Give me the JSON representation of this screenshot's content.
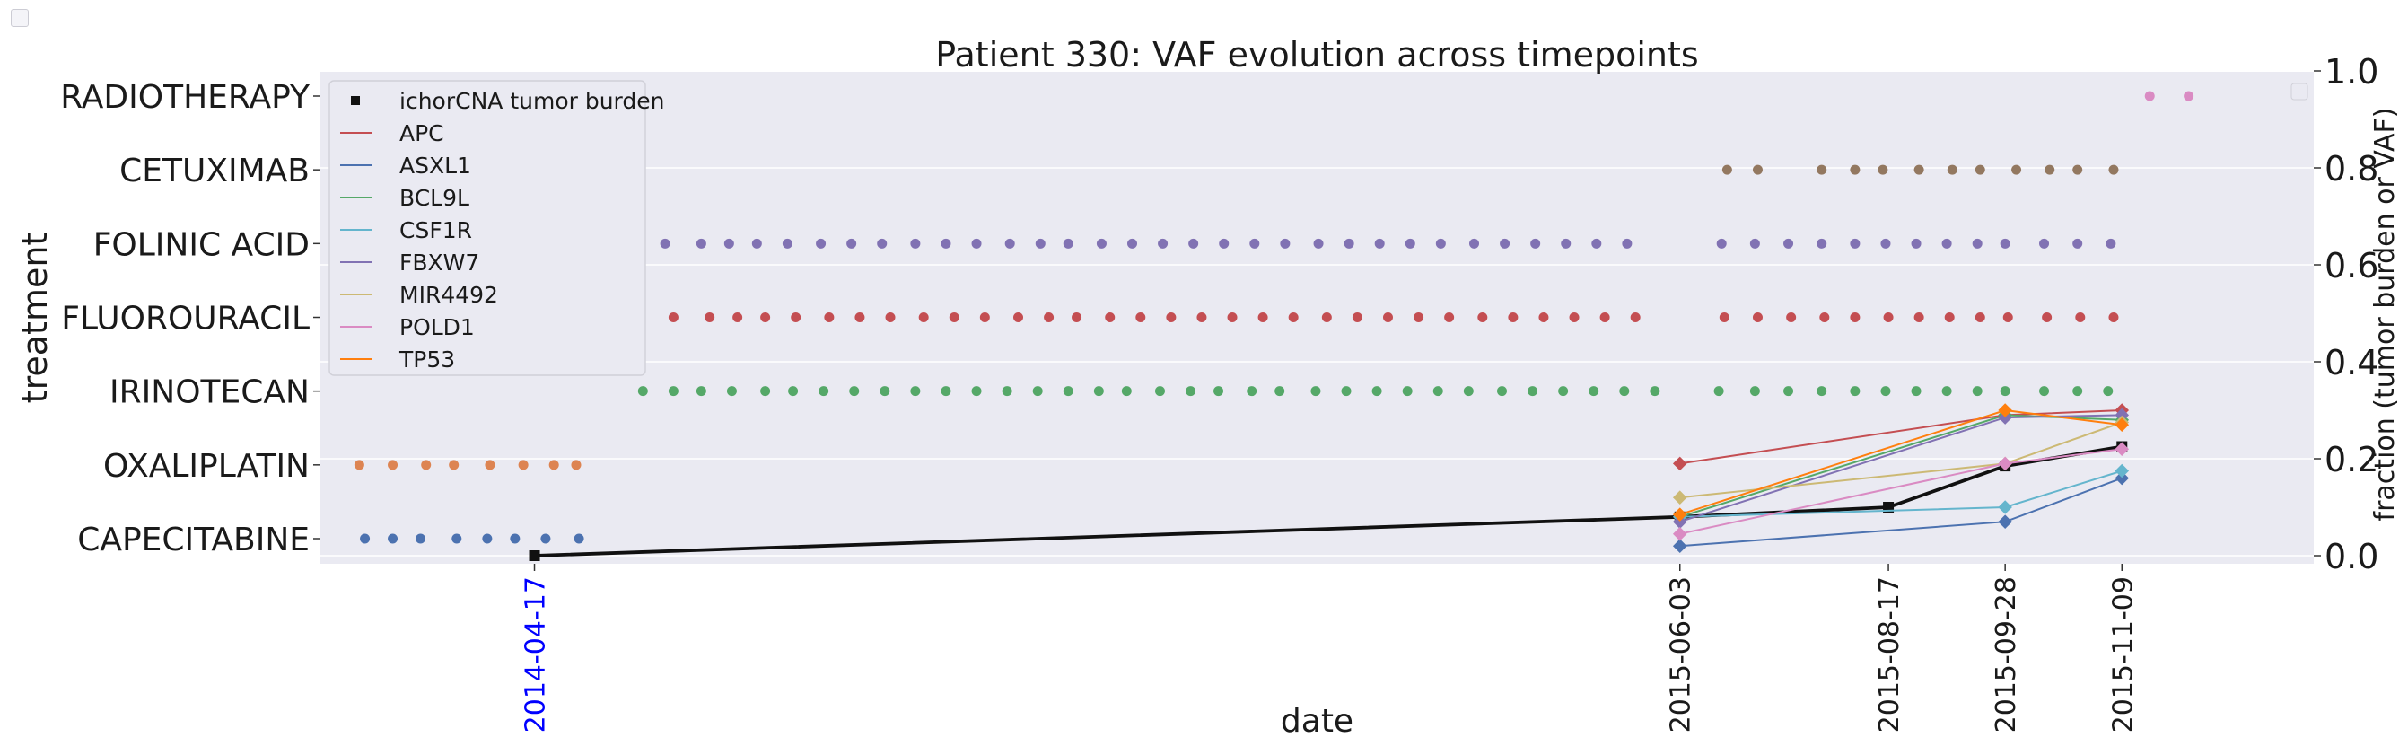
{
  "chart_data": {
    "type": "scatter",
    "title": "Patient 330: VAF evolution across timepoints",
    "xlabel": "date",
    "ylabel_left": "treatment",
    "ylabel_right": "fraction (tumor burden or VAF)",
    "right_ylim": [
      0,
      1
    ],
    "right_yticks": [
      "0.0",
      "0.2",
      "0.4",
      "0.6",
      "0.8",
      "1.0"
    ],
    "xlim": [
      "2014-01-30",
      "2016-01-17"
    ],
    "x_ticks": [
      {
        "label": "2014-04-17",
        "date": "2014-04-17",
        "color": "#0000ff"
      },
      {
        "label": "2015-06-03",
        "date": "2015-06-03",
        "color": "#1a1a1a"
      },
      {
        "label": "2015-08-17",
        "date": "2015-08-17",
        "color": "#1a1a1a"
      },
      {
        "label": "2015-09-28",
        "date": "2015-09-28",
        "color": "#1a1a1a"
      },
      {
        "label": "2015-11-09",
        "date": "2015-11-09",
        "color": "#1a1a1a"
      }
    ],
    "grid": true,
    "legend_position": "top-left",
    "treatments": [
      {
        "name": "CAPECITABINE",
        "color": "#4c72b0",
        "dates": [
          "2014-02-15",
          "2014-02-25",
          "2014-03-07",
          "2014-03-20",
          "2014-03-31",
          "2014-04-10",
          "2014-04-21",
          "2014-05-03"
        ]
      },
      {
        "name": "OXALIPLATIN",
        "color": "#dd8452",
        "dates": [
          "2014-02-13",
          "2014-02-25",
          "2014-03-09",
          "2014-03-19",
          "2014-04-01",
          "2014-04-13",
          "2014-04-24",
          "2014-05-02"
        ]
      },
      {
        "name": "IRINOTECAN",
        "color": "#55a868",
        "dates": [
          "2014-05-26",
          "2014-06-06",
          "2014-06-16",
          "2014-06-27",
          "2014-07-09",
          "2014-07-19",
          "2014-07-30",
          "2014-08-10",
          "2014-08-21",
          "2014-09-01",
          "2014-09-12",
          "2014-09-23",
          "2014-10-04",
          "2014-10-15",
          "2014-10-26",
          "2014-11-06",
          "2014-11-16",
          "2014-11-28",
          "2014-12-09",
          "2014-12-19",
          "2014-12-31",
          "2015-01-10",
          "2015-01-23",
          "2015-02-03",
          "2015-02-14",
          "2015-02-25",
          "2015-03-08",
          "2015-03-19",
          "2015-03-31",
          "2015-04-11",
          "2015-04-22",
          "2015-05-03",
          "2015-05-14",
          "2015-05-25",
          "2015-06-17",
          "2015-06-30",
          "2015-07-12",
          "2015-07-24",
          "2015-08-05",
          "2015-08-16",
          "2015-08-27",
          "2015-09-07",
          "2015-09-18",
          "2015-09-28",
          "2015-10-12",
          "2015-10-24",
          "2015-11-04"
        ]
      },
      {
        "name": "FLUOROURACIL",
        "color": "#c44e52",
        "dates": [
          "2014-06-06",
          "2014-06-19",
          "2014-06-29",
          "2014-07-09",
          "2014-07-20",
          "2014-08-01",
          "2014-08-12",
          "2014-08-23",
          "2014-09-04",
          "2014-09-15",
          "2014-09-26",
          "2014-10-08",
          "2014-10-19",
          "2014-10-29",
          "2014-11-10",
          "2014-11-21",
          "2014-12-02",
          "2014-12-13",
          "2014-12-24",
          "2015-01-04",
          "2015-01-15",
          "2015-01-27",
          "2015-02-07",
          "2015-02-18",
          "2015-03-01",
          "2015-03-12",
          "2015-03-24",
          "2015-04-04",
          "2015-04-15",
          "2015-04-26",
          "2015-05-07",
          "2015-05-18",
          "2015-06-19",
          "2015-07-01",
          "2015-07-13",
          "2015-07-25",
          "2015-08-05",
          "2015-08-17",
          "2015-08-28",
          "2015-09-08",
          "2015-09-19",
          "2015-09-29",
          "2015-10-13",
          "2015-10-25",
          "2015-11-06"
        ]
      },
      {
        "name": "FOLINIC ACID",
        "color": "#8172b3",
        "dates": [
          "2014-06-03",
          "2014-06-16",
          "2014-06-26",
          "2014-07-06",
          "2014-07-17",
          "2014-07-29",
          "2014-08-09",
          "2014-08-20",
          "2014-09-01",
          "2014-09-12",
          "2014-09-23",
          "2014-10-05",
          "2014-10-16",
          "2014-10-26",
          "2014-11-07",
          "2014-11-18",
          "2014-11-29",
          "2014-12-10",
          "2014-12-21",
          "2015-01-01",
          "2015-01-12",
          "2015-01-24",
          "2015-02-04",
          "2015-02-15",
          "2015-02-26",
          "2015-03-09",
          "2015-03-21",
          "2015-04-01",
          "2015-04-12",
          "2015-04-23",
          "2015-05-04",
          "2015-05-15",
          "2015-06-18",
          "2015-06-30",
          "2015-07-12",
          "2015-07-24",
          "2015-08-05",
          "2015-08-16",
          "2015-08-27",
          "2015-09-07",
          "2015-09-18",
          "2015-09-28",
          "2015-10-12",
          "2015-10-24",
          "2015-11-05"
        ]
      },
      {
        "name": "CETUXIMAB",
        "color": "#937860",
        "dates": [
          "2015-06-20",
          "2015-07-01",
          "2015-07-24",
          "2015-08-05",
          "2015-08-15",
          "2015-08-28",
          "2015-09-09",
          "2015-09-19",
          "2015-10-02",
          "2015-10-14",
          "2015-10-24",
          "2015-11-06"
        ]
      },
      {
        "name": "RADIOTHERAPY",
        "color": "#da8bc3",
        "dates": [
          "2015-11-19",
          "2015-12-03"
        ]
      }
    ],
    "series": [
      {
        "name": "ichorCNA tumor burden",
        "color": "#111111",
        "marker": "square",
        "x": [
          "2014-04-17",
          "2015-06-03",
          "2015-08-17",
          "2015-09-28",
          "2015-11-09"
        ],
        "y": [
          0.0,
          0.08,
          0.1,
          0.185,
          0.225
        ]
      },
      {
        "name": "APC",
        "color": "#c44e52",
        "marker": "diamond",
        "x": [
          "2015-06-03",
          "2015-09-28",
          "2015-11-09"
        ],
        "y": [
          0.19,
          0.29,
          0.3
        ]
      },
      {
        "name": "ASXL1",
        "color": "#4c72b0",
        "marker": "diamond",
        "x": [
          "2015-06-03",
          "2015-09-28",
          "2015-11-09"
        ],
        "y": [
          0.02,
          0.07,
          0.16
        ]
      },
      {
        "name": "BCL9L",
        "color": "#55a868",
        "marker": "diamond",
        "x": [
          "2015-06-03",
          "2015-09-28",
          "2015-11-09"
        ],
        "y": [
          0.08,
          0.29,
          0.28
        ]
      },
      {
        "name": "CSF1R",
        "color": "#64b5cd",
        "marker": "diamond",
        "x": [
          "2015-06-03",
          "2015-09-28",
          "2015-11-09"
        ],
        "y": [
          0.08,
          0.1,
          0.175
        ]
      },
      {
        "name": "FBXW7",
        "color": "#8172b3",
        "marker": "diamond",
        "x": [
          "2015-06-03",
          "2015-09-28",
          "2015-11-09"
        ],
        "y": [
          0.07,
          0.285,
          0.29
        ]
      },
      {
        "name": "MIR4492",
        "color": "#ccb974",
        "marker": "diamond",
        "x": [
          "2015-06-03",
          "2015-09-28",
          "2015-11-09"
        ],
        "y": [
          0.12,
          0.19,
          0.275
        ]
      },
      {
        "name": "POLD1",
        "color": "#da8bc3",
        "marker": "diamond",
        "x": [
          "2015-06-03",
          "2015-09-28",
          "2015-11-09"
        ],
        "y": [
          0.045,
          0.19,
          0.22
        ]
      },
      {
        "name": "TP53",
        "color": "#ff7f0e",
        "marker": "diamond",
        "x": [
          "2015-06-03",
          "2015-09-28",
          "2015-11-09"
        ],
        "y": [
          0.085,
          0.3,
          0.27
        ]
      }
    ]
  }
}
